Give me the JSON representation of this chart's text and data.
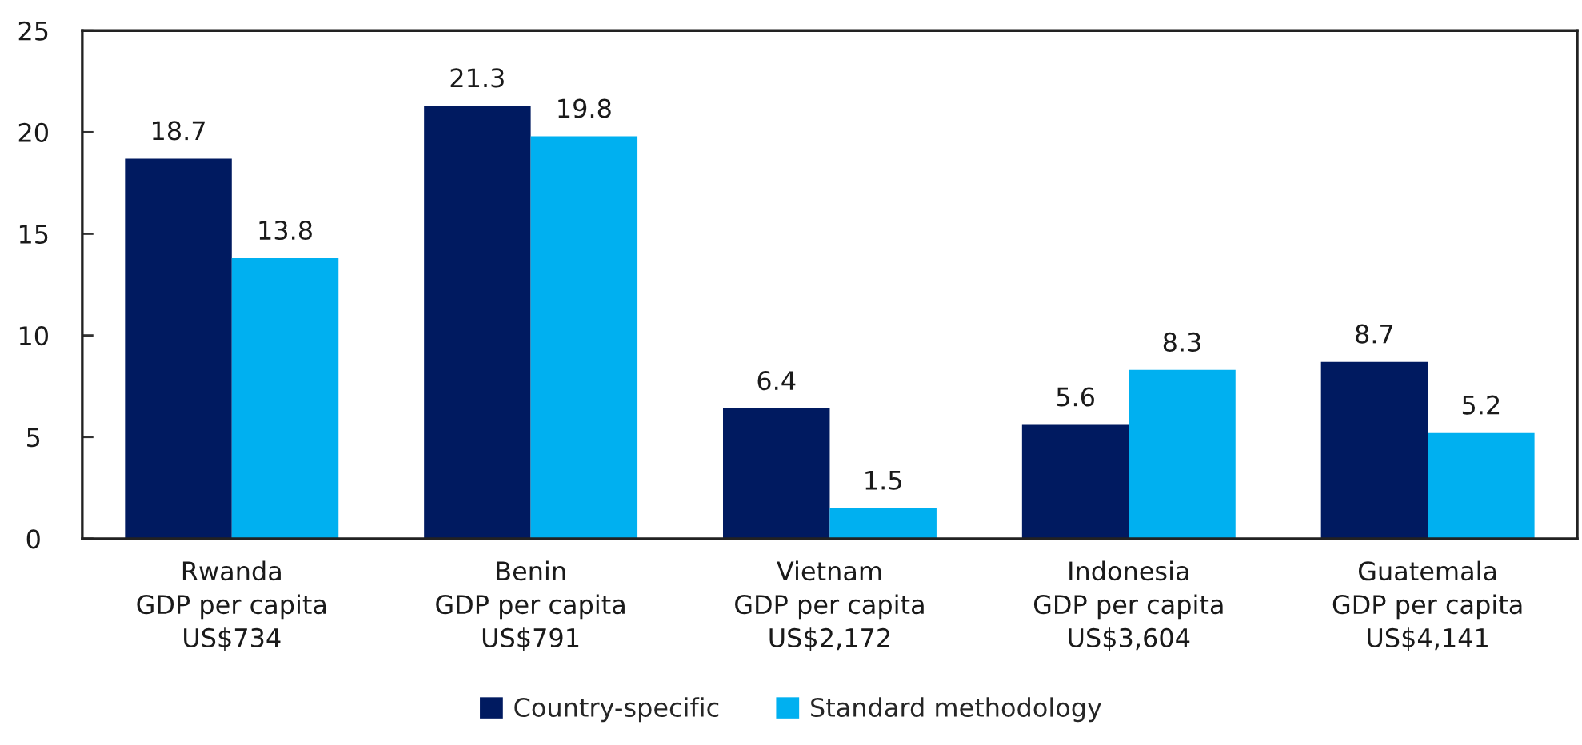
{
  "chart_data": {
    "type": "bar",
    "categories": [
      "Rwanda\nGDP per capita\nUS$734",
      "Benin\nGDP per capita\nUS$791",
      "Vietnam\nGDP per capita\nUS$2,172",
      "Indonesia\nGDP per capita\nUS$3,604",
      "Guatemala\nGDP per capita\nUS$4,141"
    ],
    "series": [
      {
        "name": "Country-specific",
        "color": "#001a60",
        "values": [
          18.7,
          21.3,
          6.4,
          5.6,
          8.7
        ]
      },
      {
        "name": "Standard methodology",
        "color": "#00b0f0",
        "values": [
          13.8,
          19.8,
          1.5,
          8.3,
          5.2
        ]
      }
    ],
    "ylim": [
      0,
      25
    ],
    "yticks": [
      0,
      5,
      10,
      15,
      20,
      25
    ],
    "data_labels": true,
    "legend": "bottom",
    "grid": false
  }
}
